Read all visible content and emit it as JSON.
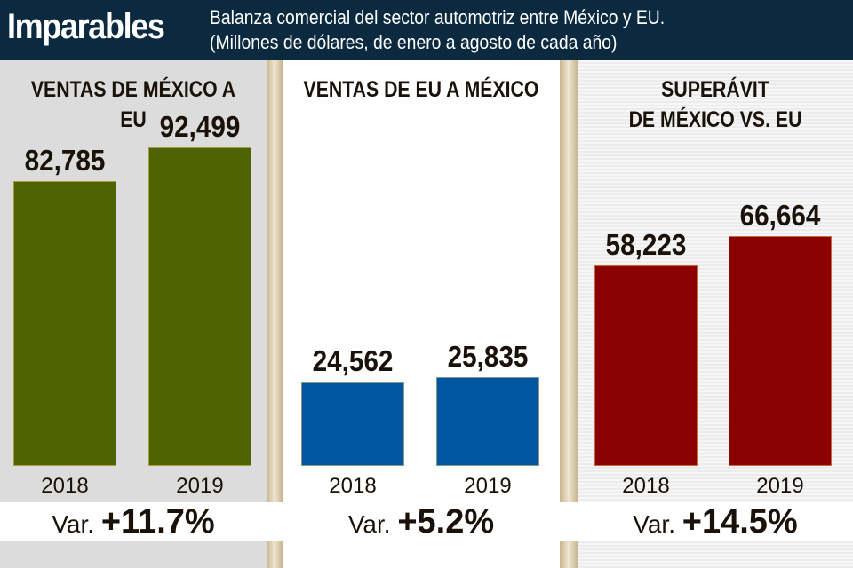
{
  "header": {
    "title": "Imparables",
    "subtitle_line1": "Balanza comercial del sector automotriz entre México y EU.",
    "subtitle_line2": "(Millones de dólares, de enero a agosto de cada año)"
  },
  "chart_data": [
    {
      "type": "bar",
      "title": "VENTAS DE MÉXICO A EU",
      "categories": [
        "2018",
        "2019"
      ],
      "values": [
        82785,
        92499
      ],
      "value_labels": [
        "82,785",
        "92,499"
      ],
      "variation_label": "Var.",
      "variation": "+11.7%",
      "color": "#4e6300"
    },
    {
      "type": "bar",
      "title": "VENTAS DE EU A MÉXICO",
      "categories": [
        "2018",
        "2019"
      ],
      "values": [
        24562,
        25835
      ],
      "value_labels": [
        "24,562",
        "25,835"
      ],
      "variation_label": "Var.",
      "variation": "+5.2%",
      "color": "#0056a0"
    },
    {
      "type": "bar",
      "title_line1": "SUPERÁVIT",
      "title_line2": "DE MÉXICO VS. EU",
      "categories": [
        "2018",
        "2019"
      ],
      "values": [
        58223,
        66664
      ],
      "value_labels": [
        "58,223",
        "66,664"
      ],
      "variation_label": "Var.",
      "variation": "+14.5%",
      "color": "#8b0000"
    }
  ]
}
